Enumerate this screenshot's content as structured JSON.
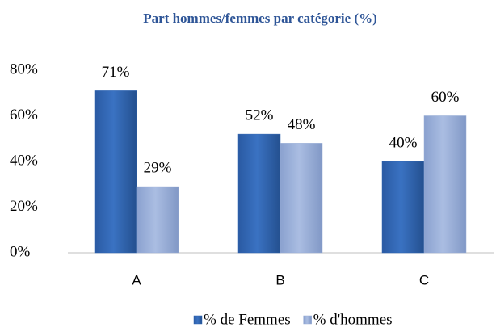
{
  "chart_data": {
    "type": "bar",
    "title": "Part hommes/femmes  par catégorie (%)",
    "categories": [
      "A",
      "B",
      "C"
    ],
    "series": [
      {
        "name": "% de Femmes",
        "color": "#2f64b1",
        "values": [
          71,
          52,
          40
        ],
        "value_labels": [
          "71%",
          "52%",
          "40%"
        ]
      },
      {
        "name": "% d'hommes",
        "color": "#98add6",
        "values": [
          29,
          48,
          60
        ],
        "value_labels": [
          "29%",
          "48%",
          "60%"
        ]
      }
    ],
    "ylim": [
      0,
      80
    ],
    "yticks": [
      {
        "value": 0,
        "label": "0%"
      },
      {
        "value": 20,
        "label": "20%"
      },
      {
        "value": 40,
        "label": "40%"
      },
      {
        "value": 60,
        "label": "60%"
      },
      {
        "value": 80,
        "label": "80%"
      }
    ],
    "grid": false,
    "legend": "bottom"
  }
}
